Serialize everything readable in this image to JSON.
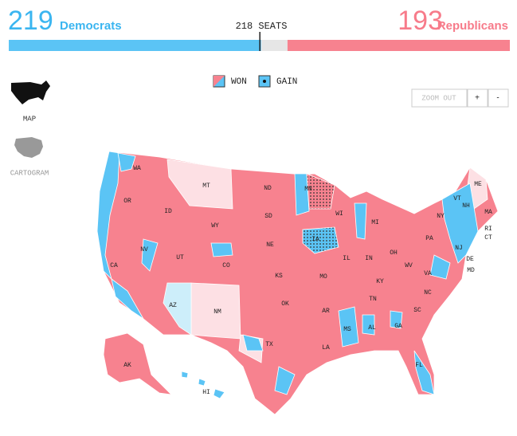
{
  "header": {
    "dem": {
      "seats": 219,
      "label": "Democrats"
    },
    "rep": {
      "seats": 193,
      "label": "Republicans"
    },
    "majority": {
      "value": 218,
      "label": "218 SEATS"
    }
  },
  "legend": {
    "won": "WON",
    "gain": "GAIN"
  },
  "controls": {
    "zoom_out": "ZOOM OUT",
    "zoom_in": "+",
    "zoom_minus": "-"
  },
  "views": {
    "map": "MAP",
    "cartogram": "CARTOGRAM"
  },
  "states": [
    "WA",
    "OR",
    "CA",
    "NV",
    "ID",
    "MT",
    "WY",
    "UT",
    "CO",
    "AZ",
    "NM",
    "ND",
    "SD",
    "NE",
    "KS",
    "OK",
    "TX",
    "MN",
    "IA",
    "MO",
    "AR",
    "LA",
    "WI",
    "IL",
    "MI",
    "IN",
    "OH",
    "KY",
    "TN",
    "MS",
    "AL",
    "GA",
    "FL",
    "SC",
    "NC",
    "VA",
    "WV",
    "PA",
    "NY",
    "VT",
    "NH",
    "ME",
    "MA",
    "RI",
    "CT",
    "NJ",
    "DE",
    "MD",
    "AK",
    "HI"
  ]
}
